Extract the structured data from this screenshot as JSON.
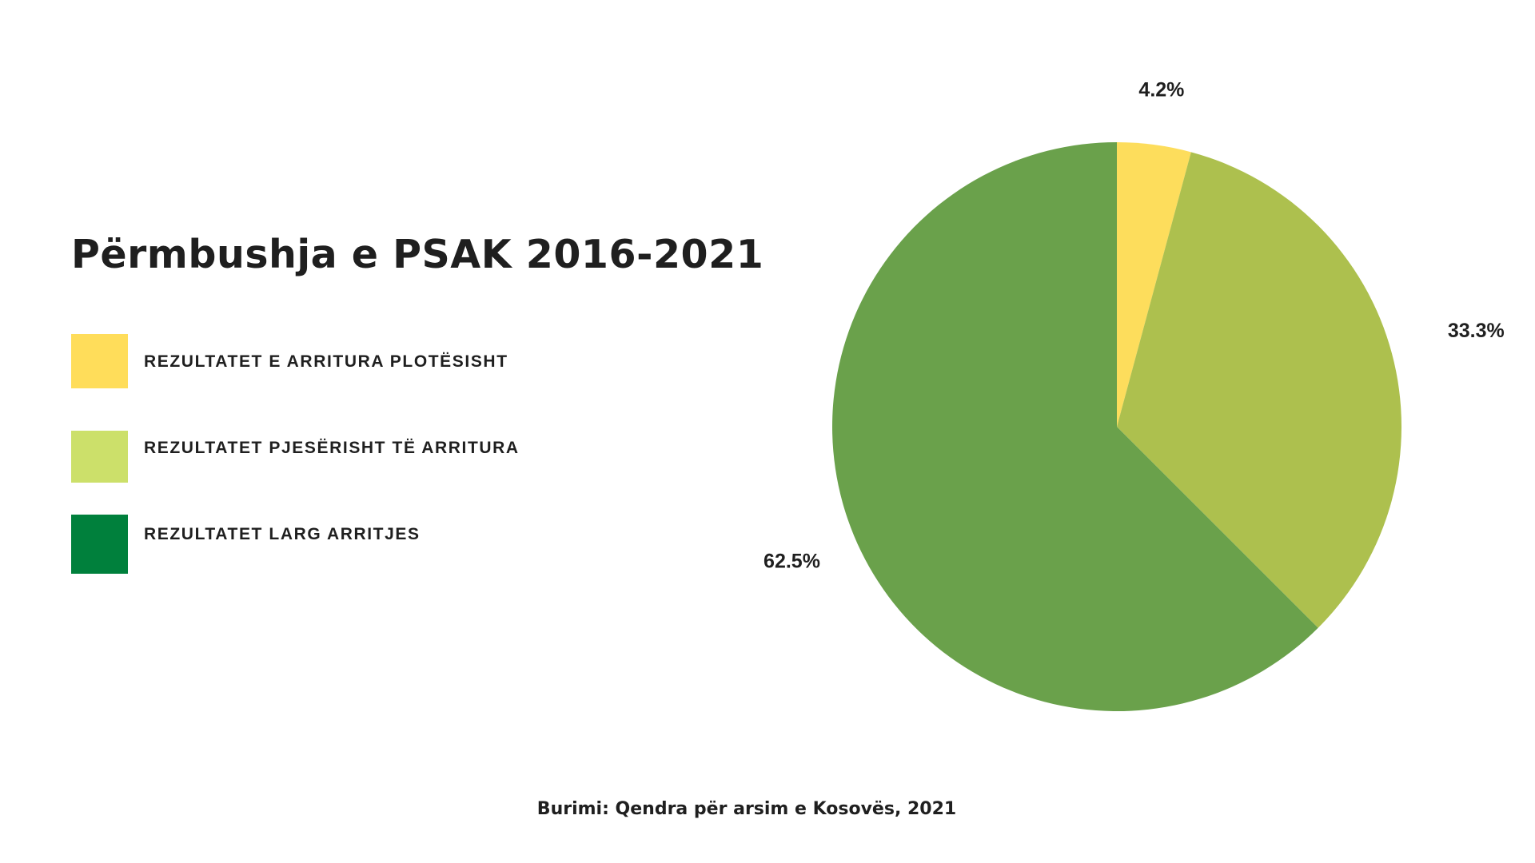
{
  "chart_data": {
    "type": "pie",
    "title": "Përmbushja e PSAK 2016-2021",
    "slices": [
      {
        "label": "REZULTATET E ARRITURA PLOTËSISHT",
        "value": 4.2,
        "display": "4.2%",
        "color": "#fddd5c"
      },
      {
        "label": "REZULTATET PJESËRISHT TË ARRITURA",
        "value": 33.3,
        "display": "33.3%",
        "color": "#adc04e"
      },
      {
        "label": "REZULTATET LARG ARRITJES",
        "value": 62.5,
        "display": "62.5%",
        "color": "#6aa14b"
      }
    ],
    "legend": {
      "placement": "left",
      "items": [
        {
          "label": "REZULTATET E ARRITURA PLOTËSISHT",
          "color": "#ffdd5a"
        },
        {
          "label": "REZULTATET PJESËRISHT TË ARRITURA",
          "color": "#cce06a"
        },
        {
          "label": "REZULTATET LARG ARRITJES",
          "color": "#00803c"
        }
      ]
    },
    "source": "Burimi: Qendra për arsim e Kosovës, 2021"
  }
}
